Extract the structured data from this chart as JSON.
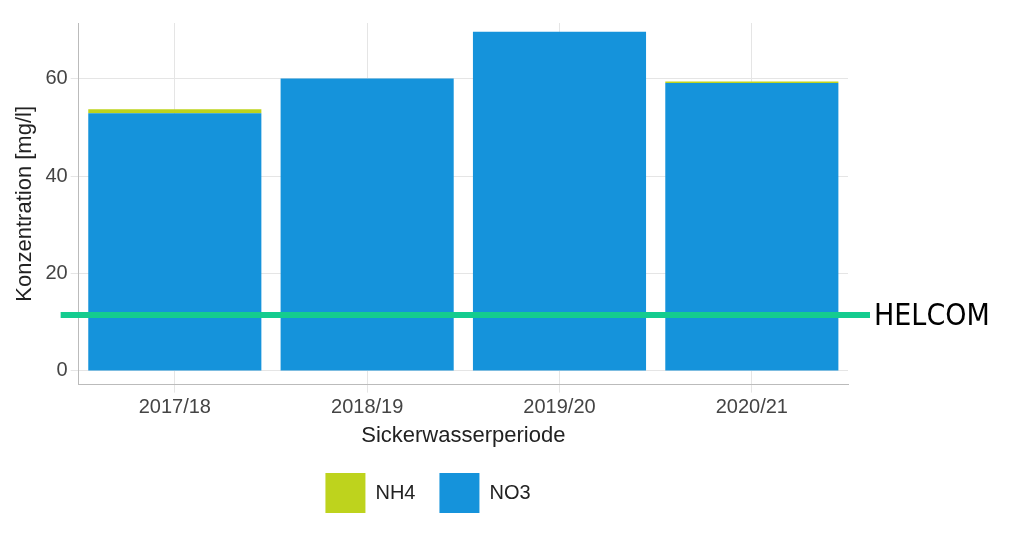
{
  "chart_data": {
    "type": "bar",
    "xlabel": "Sickerwasserperiode",
    "ylabel": "Konzentration [mg/l]",
    "categories": [
      "2017/18",
      "2018/19",
      "2019/20",
      "2020/21"
    ],
    "stacked": true,
    "series": [
      {
        "name": "NO3",
        "color": "#1593db",
        "values": [
          52.9,
          60.0,
          69.6,
          59.1
        ]
      },
      {
        "name": "NH4",
        "color": "#bed31d",
        "values": [
          0.8,
          null,
          null,
          0.3
        ]
      }
    ],
    "ylim": [
      -2.8,
      71.4
    ],
    "yticks": [
      0,
      20,
      40,
      60
    ],
    "grid": true,
    "legend": "bottom",
    "ref_lines": [
      {
        "axis": "y",
        "value": 11.5,
        "label": "HELCOM",
        "color": "#14cc8f"
      }
    ]
  }
}
